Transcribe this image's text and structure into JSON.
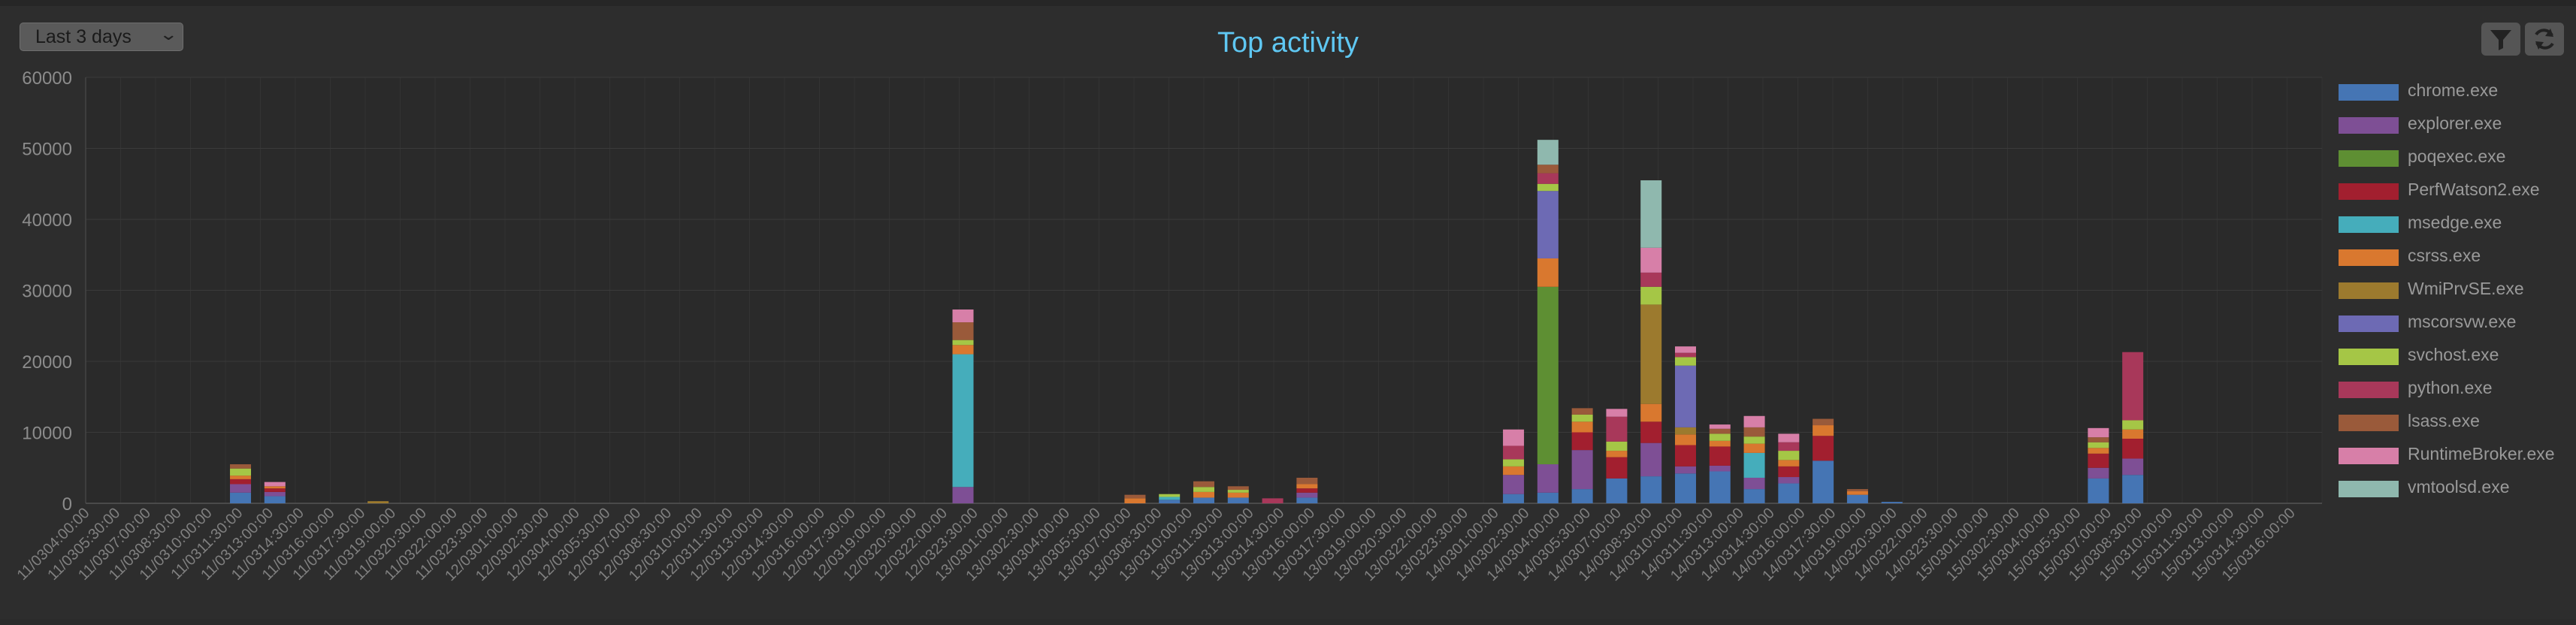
{
  "toolbar": {
    "range_label": "Last 3 days",
    "range_chevron_icon": "chevron-down-icon",
    "filter_icon": "filter-icon",
    "refresh_icon": "refresh-icon"
  },
  "colors": {
    "chrome.exe": "#4575b4",
    "explorer.exe": "#7e4f95",
    "poqexec.exe": "#5e8f33",
    "PerfWatson2.exe": "#a21f2f",
    "msedge.exe": "#45adbb",
    "csrss.exe": "#d9782f",
    "WmiPrvSE.exe": "#9c7a2e",
    "mscorsvw.exe": "#6d6ab4",
    "svchost.exe": "#a5c646",
    "python.exe": "#a8385a",
    "lsass.exe": "#9a5a3a",
    "RuntimeBroker.exe": "#d77fa8",
    "vmtoolsd.exe": "#8fb8ae"
  },
  "chart_data": {
    "type": "bar",
    "stacked": true,
    "title": "Top activity",
    "ylim": [
      0,
      60000
    ],
    "yticks": [
      0,
      10000,
      20000,
      30000,
      40000,
      50000,
      60000
    ],
    "grid": true,
    "legend_position": "right",
    "categories": [
      "11/0304:00:00",
      "11/0305:30:00",
      "11/0307:00:00",
      "11/0308:30:00",
      "11/0310:00:00",
      "11/0311:30:00",
      "11/0313:00:00",
      "11/0314:30:00",
      "11/0316:00:00",
      "11/0317:30:00",
      "11/0319:00:00",
      "11/0320:30:00",
      "11/0322:00:00",
      "11/0323:30:00",
      "12/0301:00:00",
      "12/0302:30:00",
      "12/0304:00:00",
      "12/0305:30:00",
      "12/0307:00:00",
      "12/0308:30:00",
      "12/0310:00:00",
      "12/0311:30:00",
      "12/0313:00:00",
      "12/0314:30:00",
      "12/0316:00:00",
      "12/0317:30:00",
      "12/0319:00:00",
      "12/0320:30:00",
      "12/0322:00:00",
      "12/0323:30:00",
      "13/0301:00:00",
      "13/0302:30:00",
      "13/0304:00:00",
      "13/0305:30:00",
      "13/0307:00:00",
      "13/0308:30:00",
      "13/0310:00:00",
      "13/0311:30:00",
      "13/0313:00:00",
      "13/0314:30:00",
      "13/0316:00:00",
      "13/0317:30:00",
      "13/0319:00:00",
      "13/0320:30:00",
      "13/0322:00:00",
      "13/0323:30:00",
      "14/0301:00:00",
      "14/0302:30:00",
      "14/0304:00:00",
      "14/0305:30:00",
      "14/0307:00:00",
      "14/0308:30:00",
      "14/0310:00:00",
      "14/0311:30:00",
      "14/0313:00:00",
      "14/0314:30:00",
      "14/0316:00:00",
      "14/0317:30:00",
      "14/0319:00:00",
      "14/0320:30:00",
      "14/0322:00:00",
      "14/0323:30:00",
      "15/0301:00:00",
      "15/0302:30:00",
      "15/0304:00:00",
      "15/0305:30:00",
      "15/0307:00:00",
      "15/0308:30:00",
      "15/0310:00:00",
      "15/0311:30:00",
      "15/0313:00:00",
      "15/0314:30:00",
      "15/0316:00:00"
    ],
    "bar_slots": 128,
    "bars": [
      {
        "slot": 4,
        "segments": {
          "chrome.exe": 1500,
          "explorer.exe": 1200,
          "PerfWatson2.exe": 700,
          "csrss.exe": 500,
          "svchost.exe": 1000,
          "lsass.exe": 600
        }
      },
      {
        "slot": 5,
        "segments": {
          "chrome.exe": 1000,
          "explorer.exe": 600,
          "PerfWatson2.exe": 500,
          "csrss.exe": 300,
          "RuntimeBroker.exe": 600
        }
      },
      {
        "slot": 8,
        "segments": {
          "WmiPrvSE.exe": 300
        }
      },
      {
        "slot": 25,
        "segments": {
          "explorer.exe": 2300,
          "msedge.exe": 18700,
          "csrss.exe": 1300,
          "svchost.exe": 700,
          "lsass.exe": 2500,
          "RuntimeBroker.exe": 1800
        }
      },
      {
        "slot": 30,
        "segments": {
          "csrss.exe": 700,
          "lsass.exe": 500
        }
      },
      {
        "slot": 31,
        "segments": {
          "chrome.exe": 500,
          "msedge.exe": 400,
          "svchost.exe": 400
        }
      },
      {
        "slot": 32,
        "segments": {
          "chrome.exe": 800,
          "csrss.exe": 800,
          "svchost.exe": 700,
          "lsass.exe": 800
        }
      },
      {
        "slot": 33,
        "segments": {
          "chrome.exe": 800,
          "csrss.exe": 700,
          "svchost.exe": 400,
          "lsass.exe": 500
        }
      },
      {
        "slot": 34,
        "segments": {
          "python.exe": 700
        }
      },
      {
        "slot": 35,
        "segments": {
          "chrome.exe": 800,
          "explorer.exe": 700,
          "PerfWatson2.exe": 600,
          "csrss.exe": 600,
          "lsass.exe": 900
        }
      },
      {
        "slot": 41,
        "segments": {
          "chrome.exe": 1300,
          "explorer.exe": 2700,
          "csrss.exe": 1200,
          "svchost.exe": 1000,
          "python.exe": 1900,
          "RuntimeBroker.exe": 2300
        }
      },
      {
        "slot": 42,
        "segments": {
          "chrome.exe": 1500,
          "explorer.exe": 4000,
          "poqexec.exe": 25000,
          "csrss.exe": 4000,
          "mscorsvw.exe": 9500,
          "svchost.exe": 1000,
          "python.exe": 1500,
          "lsass.exe": 1200,
          "vmtoolsd.exe": 3500
        }
      },
      {
        "slot": 43,
        "segments": {
          "chrome.exe": 2000,
          "explorer.exe": 5500,
          "PerfWatson2.exe": 2500,
          "csrss.exe": 1500,
          "svchost.exe": 1000,
          "lsass.exe": 900
        }
      },
      {
        "slot": 44,
        "segments": {
          "chrome.exe": 3500,
          "PerfWatson2.exe": 3000,
          "csrss.exe": 900,
          "svchost.exe": 1300,
          "python.exe": 3500,
          "RuntimeBroker.exe": 1100
        }
      },
      {
        "slot": 45,
        "segments": {
          "chrome.exe": 3800,
          "explorer.exe": 4700,
          "PerfWatson2.exe": 3000,
          "csrss.exe": 2500,
          "WmiPrvSE.exe": 14000,
          "svchost.exe": 2500,
          "python.exe": 2000,
          "RuntimeBroker.exe": 3500,
          "vmtoolsd.exe": 9500
        }
      },
      {
        "slot": 46,
        "segments": {
          "chrome.exe": 4200,
          "explorer.exe": 1000,
          "PerfWatson2.exe": 3000,
          "csrss.exe": 1500,
          "WmiPrvSE.exe": 1000,
          "mscorsvw.exe": 8700,
          "svchost.exe": 1200,
          "python.exe": 600,
          "RuntimeBroker.exe": 900
        }
      },
      {
        "slot": 47,
        "segments": {
          "chrome.exe": 4500,
          "explorer.exe": 800,
          "PerfWatson2.exe": 2700,
          "csrss.exe": 800,
          "svchost.exe": 1000,
          "lsass.exe": 700,
          "RuntimeBroker.exe": 600
        }
      },
      {
        "slot": 48,
        "segments": {
          "chrome.exe": 2000,
          "explorer.exe": 1600,
          "msedge.exe": 3500,
          "csrss.exe": 1300,
          "svchost.exe": 1000,
          "lsass.exe": 1300,
          "RuntimeBroker.exe": 1600
        }
      },
      {
        "slot": 49,
        "segments": {
          "chrome.exe": 2800,
          "explorer.exe": 900,
          "PerfWatson2.exe": 1500,
          "csrss.exe": 900,
          "svchost.exe": 1300,
          "python.exe": 1200,
          "RuntimeBroker.exe": 1200
        }
      },
      {
        "slot": 50,
        "segments": {
          "chrome.exe": 6000,
          "PerfWatson2.exe": 3500,
          "csrss.exe": 1500,
          "lsass.exe": 900
        }
      },
      {
        "slot": 51,
        "segments": {
          "chrome.exe": 1200,
          "csrss.exe": 500,
          "lsass.exe": 300
        }
      },
      {
        "slot": 52,
        "segments": {
          "chrome.exe": 200
        }
      },
      {
        "slot": 58,
        "segments": {
          "chrome.exe": 3500,
          "explorer.exe": 1500,
          "PerfWatson2.exe": 2000,
          "csrss.exe": 800,
          "svchost.exe": 800,
          "lsass.exe": 700,
          "RuntimeBroker.exe": 1300
        }
      },
      {
        "slot": 59,
        "segments": {
          "chrome.exe": 4000,
          "explorer.exe": 2300,
          "PerfWatson2.exe": 2800,
          "csrss.exe": 1300,
          "svchost.exe": 1300,
          "python.exe": 9600
        }
      }
    ]
  },
  "legend": {
    "items": [
      {
        "label": "chrome.exe"
      },
      {
        "label": "explorer.exe"
      },
      {
        "label": "poqexec.exe"
      },
      {
        "label": "PerfWatson2.exe"
      },
      {
        "label": "msedge.exe"
      },
      {
        "label": "csrss.exe"
      },
      {
        "label": "WmiPrvSE.exe"
      },
      {
        "label": "mscorsvw.exe"
      },
      {
        "label": "svchost.exe"
      },
      {
        "label": "python.exe"
      },
      {
        "label": "lsass.exe"
      },
      {
        "label": "RuntimeBroker.exe"
      },
      {
        "label": "vmtoolsd.exe"
      }
    ]
  }
}
